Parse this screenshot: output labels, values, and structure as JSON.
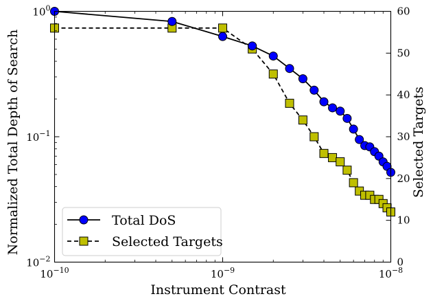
{
  "chart_data": {
    "type": "line",
    "xlabel": "Instrument Contrast",
    "ylabel_left": "Normalized Total Depth of Search",
    "ylabel_right": "Selected Targets",
    "x_scale": "log",
    "y_left_scale": "log",
    "y_right_scale": "linear",
    "xlim": [
      1e-10,
      1e-08
    ],
    "ylim_left": [
      0.01,
      1
    ],
    "ylim_right": [
      0,
      60
    ],
    "x_ticks": [
      {
        "value": 1e-10,
        "base": "10",
        "exp": "−10"
      },
      {
        "value": 1e-09,
        "base": "10",
        "exp": "−9"
      },
      {
        "value": 1e-08,
        "base": "10",
        "exp": "−8"
      }
    ],
    "y_left_ticks": [
      {
        "value": 1,
        "base": "10",
        "exp": "0"
      },
      {
        "value": 0.1,
        "base": "10",
        "exp": "−1"
      },
      {
        "value": 0.01,
        "base": "10",
        "exp": "−2"
      }
    ],
    "y_right_ticks": [
      "0",
      "10",
      "20",
      "30",
      "40",
      "50",
      "60"
    ],
    "legend": {
      "placement": "lower-left",
      "entries": [
        {
          "label": "Total DoS",
          "series": "total_dos"
        },
        {
          "label": "Selected Targets",
          "series": "selected_targets"
        }
      ]
    },
    "grid": false,
    "series": [
      {
        "id": "total_dos",
        "axis": "left",
        "name": "Total DoS",
        "color": "#0000ff",
        "line_style": "solid",
        "marker": "circle",
        "x": [
          1e-10,
          5e-10,
          1e-09,
          1.5e-09,
          2e-09,
          2.5e-09,
          3e-09,
          3.5e-09,
          4e-09,
          4.5e-09,
          5e-09,
          5.5e-09,
          6e-09,
          6.5e-09,
          7e-09,
          7.5e-09,
          8e-09,
          8.5e-09,
          9e-09,
          9.5e-09,
          1e-08
        ],
        "values": [
          1.0,
          0.83,
          0.63,
          0.53,
          0.44,
          0.35,
          0.29,
          0.235,
          0.19,
          0.17,
          0.16,
          0.14,
          0.115,
          0.095,
          0.085,
          0.083,
          0.076,
          0.07,
          0.063,
          0.058,
          0.052
        ]
      },
      {
        "id": "selected_targets",
        "axis": "right",
        "name": "Selected Targets",
        "color": "#bfbf00",
        "line_style": "dashed",
        "marker": "square",
        "x": [
          1e-10,
          5e-10,
          1e-09,
          1.5e-09,
          2e-09,
          2.5e-09,
          3e-09,
          3.5e-09,
          4e-09,
          4.5e-09,
          5e-09,
          5.5e-09,
          6e-09,
          6.5e-09,
          7e-09,
          7.5e-09,
          8e-09,
          8.5e-09,
          9e-09,
          9.5e-09,
          1e-08
        ],
        "values": [
          56,
          56,
          56,
          51,
          45,
          38,
          34,
          30,
          26,
          25,
          24,
          22,
          19,
          17,
          16,
          16,
          15,
          15,
          14,
          13,
          12
        ]
      }
    ]
  }
}
